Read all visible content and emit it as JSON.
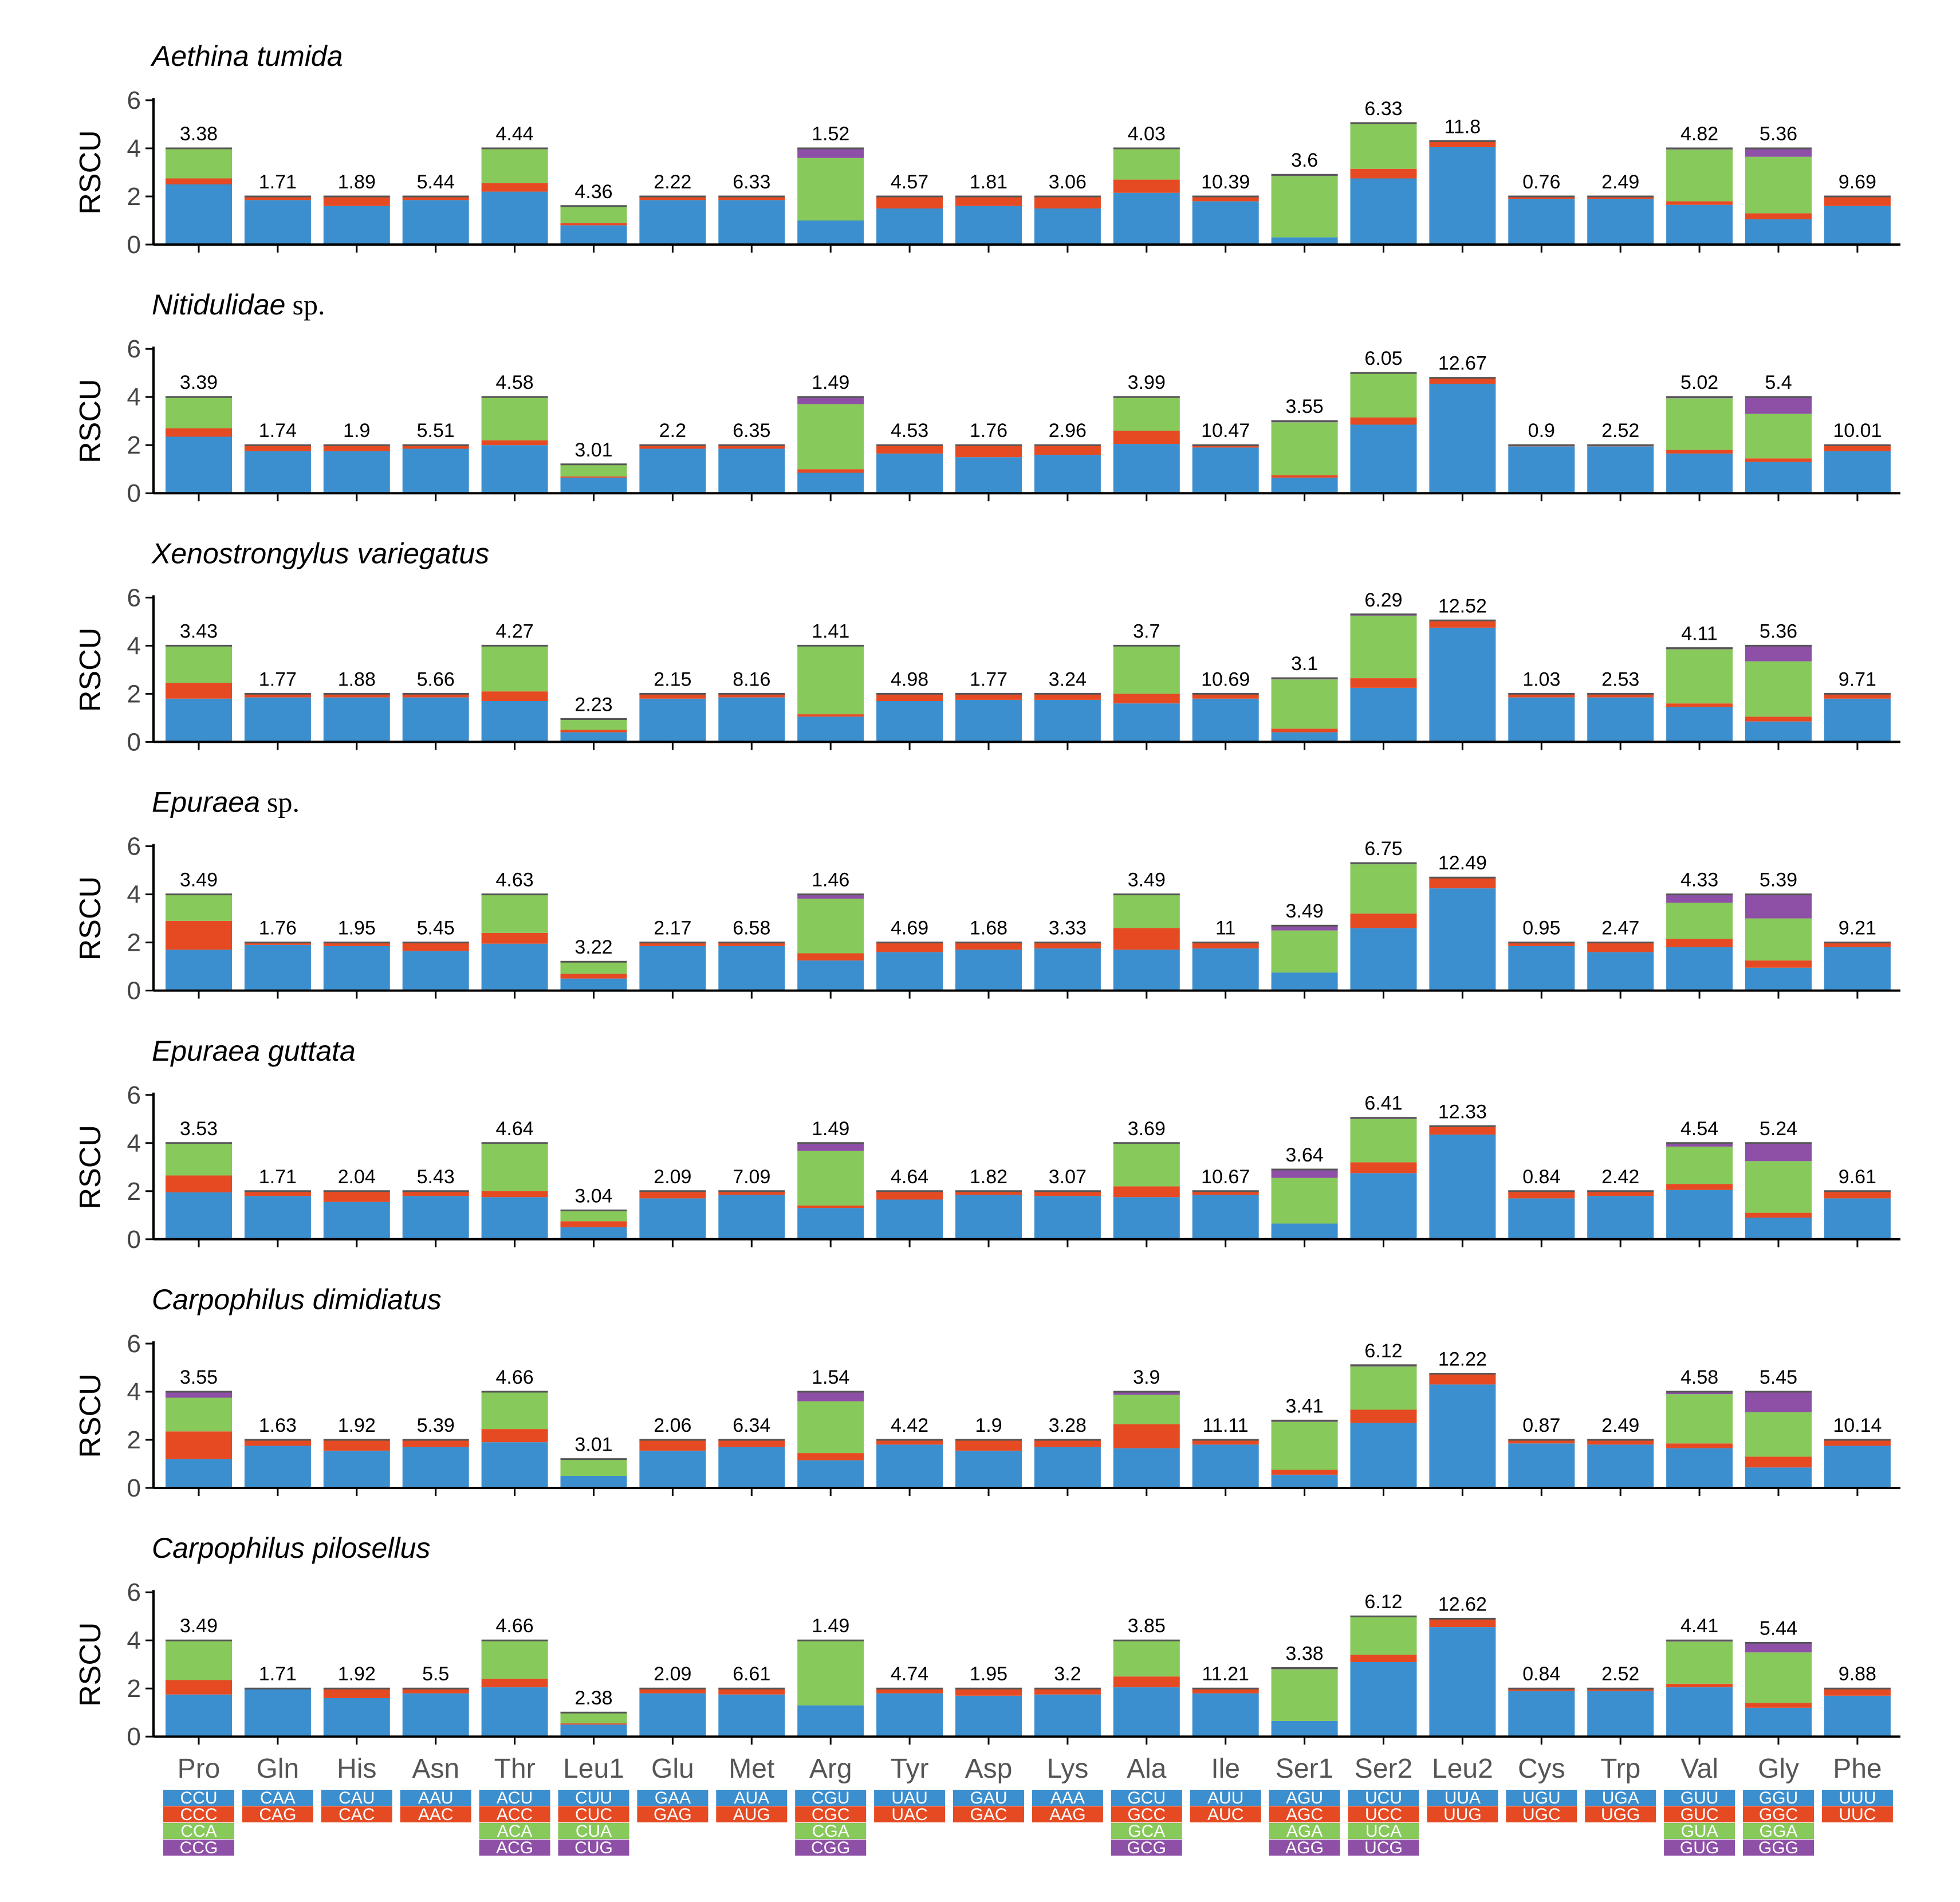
{
  "colors": {
    "c1": "#3C8FCE",
    "c2": "#E64A23",
    "c3": "#87C95A",
    "c4": "#8E4FA6"
  },
  "chart_data": {
    "type": "bar",
    "stacked": true,
    "ylabel": "RSCU",
    "ylim": [
      0,
      6
    ],
    "yticks": [
      0,
      2,
      4,
      6
    ],
    "categories": [
      "Pro",
      "Gln",
      "His",
      "Asn",
      "Thr",
      "Leu1",
      "Glu",
      "Met",
      "Arg",
      "Tyr",
      "Asp",
      "Lys",
      "Ala",
      "Ile",
      "Ser1",
      "Ser2",
      "Leu2",
      "Cys",
      "Trp",
      "Val",
      "Gly",
      "Phe"
    ],
    "codons": [
      [
        "CCU",
        "CCC",
        "CCA",
        "CCG"
      ],
      [
        "CAA",
        "CAG"
      ],
      [
        "CAU",
        "CAC"
      ],
      [
        "AAU",
        "AAC"
      ],
      [
        "ACU",
        "ACC",
        "ACA",
        "ACG"
      ],
      [
        "CUU",
        "CUC",
        "CUA",
        "CUG"
      ],
      [
        "GAA",
        "GAG"
      ],
      [
        "AUA",
        "AUG"
      ],
      [
        "CGU",
        "CGC",
        "CGA",
        "CGG"
      ],
      [
        "UAU",
        "UAC"
      ],
      [
        "GAU",
        "GAC"
      ],
      [
        "AAA",
        "AAG"
      ],
      [
        "GCU",
        "GCC",
        "GCA",
        "GCG"
      ],
      [
        "AUU",
        "AUC"
      ],
      [
        "AGU",
        "AGC",
        "AGA",
        "AGG"
      ],
      [
        "UCU",
        "UCC",
        "UCA",
        "UCG"
      ],
      [
        "UUA",
        "UUG"
      ],
      [
        "UGU",
        "UGC"
      ],
      [
        "UGA",
        "UGG"
      ],
      [
        "GUU",
        "GUC",
        "GUA",
        "GUG"
      ],
      [
        "GGU",
        "GGC",
        "GGA",
        "GGG"
      ],
      [
        "UUU",
        "UUC"
      ]
    ],
    "panels": [
      {
        "species": "Aethina tumida",
        "suffix": "",
        "labels": [
          "3.38",
          "1.71",
          "1.89",
          "5.44",
          "4.44",
          "4.36",
          "2.22",
          "6.33",
          "1.52",
          "4.57",
          "1.81",
          "3.06",
          "4.03",
          "10.39",
          "3.6",
          "6.33",
          "11.8",
          "0.76",
          "2.49",
          "4.82",
          "5.36",
          "9.69"
        ],
        "stacks": [
          [
            2.5,
            0.25,
            1.22,
            0.03
          ],
          [
            1.85,
            0.15
          ],
          [
            1.6,
            0.4
          ],
          [
            1.85,
            0.15
          ],
          [
            2.2,
            0.35,
            1.42,
            0.03
          ],
          [
            0.8,
            0.1,
            0.7,
            0.0
          ],
          [
            1.85,
            0.15
          ],
          [
            1.85,
            0.15
          ],
          [
            1.0,
            0.0,
            2.6,
            0.4
          ],
          [
            1.5,
            0.5
          ],
          [
            1.6,
            0.4
          ],
          [
            1.5,
            0.5
          ],
          [
            2.15,
            0.55,
            1.27,
            0.03
          ],
          [
            1.8,
            0.2
          ],
          [
            0.3,
            0.0,
            2.55,
            0.05
          ],
          [
            2.75,
            0.4,
            1.85,
            0.05
          ],
          [
            4.05,
            0.25
          ],
          [
            1.9,
            0.1
          ],
          [
            1.9,
            0.1
          ],
          [
            1.65,
            0.15,
            2.15,
            0.05
          ],
          [
            1.05,
            0.25,
            2.35,
            0.35
          ],
          [
            1.6,
            0.4
          ]
        ]
      },
      {
        "species": "Nitidulidae",
        "suffix": "sp.",
        "labels": [
          "3.39",
          "1.74",
          "1.9",
          "5.51",
          "4.58",
          "3.01",
          "2.2",
          "6.35",
          "1.49",
          "4.53",
          "1.76",
          "2.96",
          "3.99",
          "10.47",
          "3.55",
          "6.05",
          "12.67",
          "0.9",
          "2.52",
          "5.02",
          "5.4",
          "10.01"
        ],
        "stacks": [
          [
            2.35,
            0.35,
            1.27,
            0.03
          ],
          [
            1.75,
            0.25
          ],
          [
            1.75,
            0.25
          ],
          [
            1.85,
            0.15
          ],
          [
            2.0,
            0.2,
            1.77,
            0.03
          ],
          [
            0.65,
            0.05,
            0.5,
            0.0
          ],
          [
            1.85,
            0.15
          ],
          [
            1.85,
            0.15
          ],
          [
            0.85,
            0.15,
            2.7,
            0.3
          ],
          [
            1.65,
            0.35
          ],
          [
            1.5,
            0.5
          ],
          [
            1.6,
            0.4
          ],
          [
            2.05,
            0.55,
            1.37,
            0.03
          ],
          [
            1.9,
            0.1
          ],
          [
            0.65,
            0.1,
            2.2,
            0.05
          ],
          [
            2.85,
            0.3,
            1.85,
            0.0
          ],
          [
            4.55,
            0.25
          ],
          [
            1.95,
            0.05
          ],
          [
            1.95,
            0.05
          ],
          [
            1.65,
            0.15,
            2.15,
            0.05
          ],
          [
            1.3,
            0.15,
            1.85,
            0.7
          ],
          [
            1.75,
            0.25
          ]
        ]
      },
      {
        "species": "Xenostrongylus variegatus",
        "suffix": "",
        "labels": [
          "3.43",
          "1.77",
          "1.88",
          "5.66",
          "4.27",
          "2.23",
          "2.15",
          "8.16",
          "1.41",
          "4.98",
          "1.77",
          "3.24",
          "3.7",
          "10.69",
          "3.1",
          "6.29",
          "12.52",
          "1.03",
          "2.53",
          "4.11",
          "5.36",
          "9.71"
        ],
        "stacks": [
          [
            1.8,
            0.65,
            1.52,
            0.03
          ],
          [
            1.85,
            0.15
          ],
          [
            1.85,
            0.15
          ],
          [
            1.85,
            0.15
          ],
          [
            1.7,
            0.4,
            1.87,
            0.03
          ],
          [
            0.4,
            0.1,
            0.45,
            0.0
          ],
          [
            1.8,
            0.2
          ],
          [
            1.85,
            0.15
          ],
          [
            1.05,
            0.1,
            2.82,
            0.03
          ],
          [
            1.7,
            0.3
          ],
          [
            1.75,
            0.25
          ],
          [
            1.75,
            0.25
          ],
          [
            1.6,
            0.4,
            1.97,
            0.03
          ],
          [
            1.8,
            0.2
          ],
          [
            0.4,
            0.15,
            2.05,
            0.05
          ],
          [
            2.25,
            0.4,
            2.6,
            0.05
          ],
          [
            4.75,
            0.3
          ],
          [
            1.85,
            0.15
          ],
          [
            1.85,
            0.15
          ],
          [
            1.45,
            0.15,
            2.25,
            0.05
          ],
          [
            0.85,
            0.2,
            2.3,
            0.65
          ],
          [
            1.8,
            0.2
          ]
        ]
      },
      {
        "species": "Epuraea",
        "suffix": "sp.",
        "labels": [
          "3.49",
          "1.76",
          "1.95",
          "5.45",
          "4.63",
          "3.22",
          "2.17",
          "6.58",
          "1.46",
          "4.69",
          "1.68",
          "3.33",
          "3.49",
          "11",
          "3.49",
          "6.75",
          "12.49",
          "0.95",
          "2.47",
          "4.33",
          "5.39",
          "9.21"
        ],
        "stacks": [
          [
            1.7,
            1.2,
            1.07,
            0.03
          ],
          [
            1.9,
            0.1
          ],
          [
            1.85,
            0.15
          ],
          [
            1.65,
            0.35
          ],
          [
            1.95,
            0.45,
            1.57,
            0.03
          ],
          [
            0.5,
            0.2,
            0.5,
            0.0
          ],
          [
            1.85,
            0.15
          ],
          [
            1.85,
            0.15
          ],
          [
            1.25,
            0.3,
            2.27,
            0.18
          ],
          [
            1.6,
            0.4
          ],
          [
            1.7,
            0.3
          ],
          [
            1.75,
            0.25
          ],
          [
            1.7,
            0.9,
            1.37,
            0.03
          ],
          [
            1.75,
            0.25
          ],
          [
            0.75,
            0.0,
            1.75,
            0.2
          ],
          [
            2.6,
            0.6,
            2.05,
            0.05
          ],
          [
            4.25,
            0.45
          ],
          [
            1.85,
            0.15
          ],
          [
            1.6,
            0.4
          ],
          [
            1.8,
            0.35,
            1.5,
            0.35
          ],
          [
            0.95,
            0.3,
            1.75,
            1.0
          ],
          [
            1.8,
            0.2
          ]
        ]
      },
      {
        "species": "Epuraea guttata",
        "suffix": "",
        "labels": [
          "3.53",
          "1.71",
          "2.04",
          "5.43",
          "4.64",
          "3.04",
          "2.09",
          "7.09",
          "1.49",
          "4.64",
          "1.82",
          "3.07",
          "3.69",
          "10.67",
          "3.64",
          "6.41",
          "12.33",
          "0.84",
          "2.42",
          "4.54",
          "5.24",
          "9.61"
        ],
        "stacks": [
          [
            1.95,
            0.7,
            1.32,
            0.03
          ],
          [
            1.8,
            0.2
          ],
          [
            1.55,
            0.45
          ],
          [
            1.8,
            0.2
          ],
          [
            1.75,
            0.25,
            1.97,
            0.03
          ],
          [
            0.5,
            0.25,
            0.45,
            0.0
          ],
          [
            1.7,
            0.3
          ],
          [
            1.85,
            0.15
          ],
          [
            1.3,
            0.1,
            2.27,
            0.33
          ],
          [
            1.65,
            0.35
          ],
          [
            1.85,
            0.15
          ],
          [
            1.8,
            0.2
          ],
          [
            1.75,
            0.45,
            1.77,
            0.03
          ],
          [
            1.85,
            0.15
          ],
          [
            0.65,
            0.0,
            1.9,
            0.35
          ],
          [
            2.75,
            0.45,
            1.8,
            0.05
          ],
          [
            4.35,
            0.35
          ],
          [
            1.7,
            0.3
          ],
          [
            1.8,
            0.2
          ],
          [
            2.05,
            0.25,
            1.55,
            0.15
          ],
          [
            0.9,
            0.2,
            2.15,
            0.75
          ],
          [
            1.7,
            0.3
          ]
        ]
      },
      {
        "species": "Carpophilus dimidiatus",
        "suffix": "",
        "labels": [
          "3.55",
          "1.63",
          "1.92",
          "5.39",
          "4.66",
          "3.01",
          "2.06",
          "6.34",
          "1.54",
          "4.42",
          "1.9",
          "3.28",
          "3.9",
          "11.11",
          "3.41",
          "6.12",
          "12.22",
          "0.87",
          "2.49",
          "4.58",
          "5.45",
          "10.14"
        ],
        "stacks": [
          [
            1.2,
            1.15,
            1.4,
            0.25
          ],
          [
            1.75,
            0.25
          ],
          [
            1.55,
            0.45
          ],
          [
            1.7,
            0.3
          ],
          [
            1.9,
            0.55,
            1.52,
            0.03
          ],
          [
            0.5,
            0.0,
            0.7,
            0.0
          ],
          [
            1.55,
            0.45
          ],
          [
            1.7,
            0.3
          ],
          [
            1.15,
            0.3,
            2.15,
            0.4
          ],
          [
            1.8,
            0.2
          ],
          [
            1.55,
            0.45
          ],
          [
            1.7,
            0.3
          ],
          [
            1.65,
            1.0,
            1.22,
            0.13
          ],
          [
            1.8,
            0.2
          ],
          [
            0.55,
            0.2,
            2.0,
            0.05
          ],
          [
            2.7,
            0.55,
            1.8,
            0.05
          ],
          [
            4.3,
            0.45
          ],
          [
            1.85,
            0.15
          ],
          [
            1.8,
            0.2
          ],
          [
            1.65,
            0.2,
            2.05,
            0.1
          ],
          [
            0.85,
            0.45,
            1.85,
            0.85
          ],
          [
            1.75,
            0.25
          ]
        ]
      },
      {
        "species": "Carpophilus pilosellus",
        "suffix": "",
        "labels": [
          "3.49",
          "1.71",
          "1.92",
          "5.5",
          "4.66",
          "2.38",
          "2.09",
          "6.61",
          "1.49",
          "4.74",
          "1.95",
          "3.2",
          "3.85",
          "11.21",
          "3.38",
          "6.12",
          "12.62",
          "0.84",
          "2.52",
          "4.41",
          "5.44",
          "9.88"
        ],
        "stacks": [
          [
            1.75,
            0.6,
            1.62,
            0.03
          ],
          [
            2.0,
            0.0
          ],
          [
            1.6,
            0.4
          ],
          [
            1.8,
            0.2
          ],
          [
            2.05,
            0.35,
            1.57,
            0.03
          ],
          [
            0.5,
            0.05,
            0.45,
            0.0
          ],
          [
            1.8,
            0.2
          ],
          [
            1.75,
            0.25
          ],
          [
            1.3,
            0.0,
            2.7,
            0.0
          ],
          [
            1.8,
            0.2
          ],
          [
            1.7,
            0.3
          ],
          [
            1.75,
            0.25
          ],
          [
            2.05,
            0.45,
            1.47,
            0.03
          ],
          [
            1.8,
            0.2
          ],
          [
            0.65,
            0.0,
            2.15,
            0.05
          ],
          [
            3.1,
            0.3,
            1.6,
            0.0
          ],
          [
            4.55,
            0.35
          ],
          [
            1.9,
            0.1
          ],
          [
            1.9,
            0.1
          ],
          [
            2.05,
            0.15,
            1.75,
            0.05
          ],
          [
            1.2,
            0.2,
            2.1,
            0.4
          ],
          [
            1.7,
            0.3
          ]
        ]
      }
    ]
  }
}
